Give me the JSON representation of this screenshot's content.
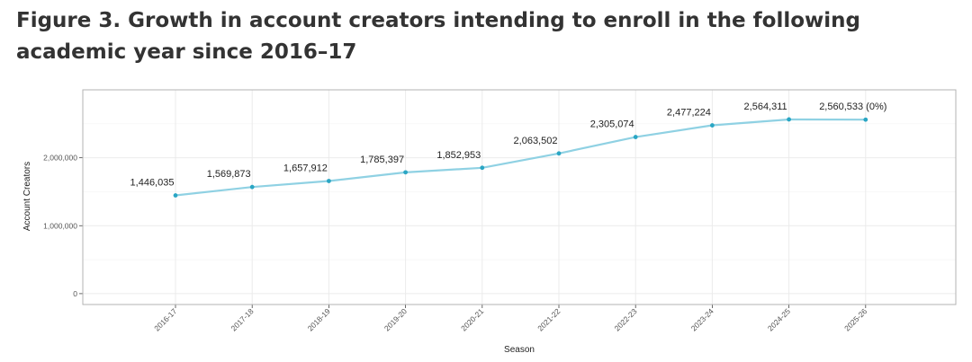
{
  "page": {
    "title": "Figure 3. Growth in account creators intending to enroll in the following academic year since 2016–17"
  },
  "chart_data": {
    "type": "line",
    "title": "Figure 3. Growth in account creators intending to enroll in the following academic year since 2016–17",
    "xlabel": "Season",
    "ylabel": "Account Creators",
    "categories": [
      "2016-17",
      "2017-18",
      "2018-19",
      "2019-20",
      "2020-21",
      "2021-22",
      "2022-23",
      "2023-24",
      "2024-25",
      "2025-26"
    ],
    "series": [
      {
        "values": [
          1446035,
          1569873,
          1657912,
          1785397,
          1852953,
          2063502,
          2305074,
          2477224,
          2564311,
          2560533
        ]
      }
    ],
    "data_labels": [
      "1,446,035",
      "1,569,873",
      "1,657,912",
      "1,785,397",
      "1,852,953",
      "2,063,502",
      "2,305,074",
      "2,477,224",
      "2,564,311",
      "2,560,533 (0%)"
    ],
    "yticks": [
      0,
      1000000,
      2000000
    ],
    "ytick_labels": [
      "0",
      "1,000,000",
      "2,000,000"
    ],
    "ylim": [
      -160000,
      3000000
    ],
    "grid": true,
    "legend": "none",
    "colors": {
      "line": "#8fd1e3",
      "point": "#2aa6c4",
      "grid": "#ebebeb",
      "panel_border": "#b3b3b3"
    }
  }
}
